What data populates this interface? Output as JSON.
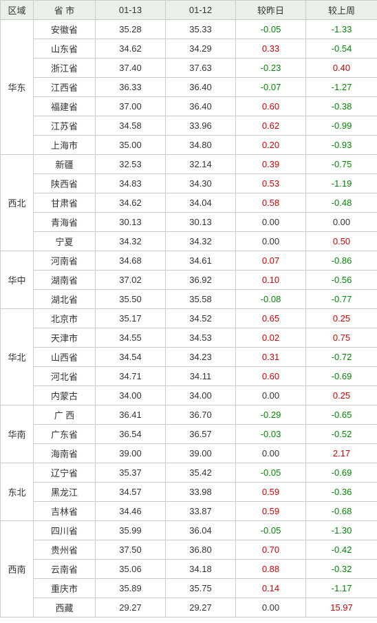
{
  "columns": {
    "region": "区域",
    "province": "省 市",
    "date1": "01-13",
    "date2": "01-12",
    "deltaDay": "较昨日",
    "deltaWeek": "较上周"
  },
  "regions": [
    {
      "name": "华东",
      "rows": [
        {
          "province": "安徽省",
          "v1": "35.28",
          "v2": "35.33",
          "d1": "-0.05",
          "d2": "-1.33"
        },
        {
          "province": "山东省",
          "v1": "34.62",
          "v2": "34.29",
          "d1": "0.33",
          "d2": "-0.54"
        },
        {
          "province": "浙江省",
          "v1": "37.40",
          "v2": "37.63",
          "d1": "-0.23",
          "d2": "0.40"
        },
        {
          "province": "江西省",
          "v1": "36.33",
          "v2": "36.40",
          "d1": "-0.07",
          "d2": "-1.27"
        },
        {
          "province": "福建省",
          "v1": "37.00",
          "v2": "36.40",
          "d1": "0.60",
          "d2": "-0.38"
        },
        {
          "province": "江苏省",
          "v1": "34.58",
          "v2": "33.96",
          "d1": "0.62",
          "d2": "-0.99"
        },
        {
          "province": "上海市",
          "v1": "35.00",
          "v2": "34.80",
          "d1": "0.20",
          "d2": "-0.93"
        }
      ]
    },
    {
      "name": "西北",
      "rows": [
        {
          "province": "新疆",
          "v1": "32.53",
          "v2": "32.14",
          "d1": "0.39",
          "d2": "-0.75"
        },
        {
          "province": "陕西省",
          "v1": "34.83",
          "v2": "34.30",
          "d1": "0.53",
          "d2": "-1.19"
        },
        {
          "province": "甘肃省",
          "v1": "34.62",
          "v2": "34.04",
          "d1": "0.58",
          "d2": "-0.48"
        },
        {
          "province": "青海省",
          "v1": "30.13",
          "v2": "30.13",
          "d1": "0.00",
          "d2": "0.00"
        },
        {
          "province": "宁夏",
          "v1": "34.32",
          "v2": "34.32",
          "d1": "0.00",
          "d2": "0.50"
        }
      ]
    },
    {
      "name": "华中",
      "rows": [
        {
          "province": "河南省",
          "v1": "34.68",
          "v2": "34.61",
          "d1": "0.07",
          "d2": "-0.86"
        },
        {
          "province": "湖南省",
          "v1": "37.02",
          "v2": "36.92",
          "d1": "0.10",
          "d2": "-0.56"
        },
        {
          "province": "湖北省",
          "v1": "35.50",
          "v2": "35.58",
          "d1": "-0.08",
          "d2": "-0.77"
        }
      ]
    },
    {
      "name": "华北",
      "rows": [
        {
          "province": "北京市",
          "v1": "35.17",
          "v2": "34.52",
          "d1": "0.65",
          "d2": "0.25"
        },
        {
          "province": "天津市",
          "v1": "34.55",
          "v2": "34.53",
          "d1": "0.02",
          "d2": "0.75"
        },
        {
          "province": "山西省",
          "v1": "34.54",
          "v2": "34.23",
          "d1": "0.31",
          "d2": "-0.72"
        },
        {
          "province": "河北省",
          "v1": "34.71",
          "v2": "34.11",
          "d1": "0.60",
          "d2": "-0.69"
        },
        {
          "province": "内蒙古",
          "v1": "34.00",
          "v2": "34.00",
          "d1": "0.00",
          "d2": "0.25"
        }
      ]
    },
    {
      "name": "华南",
      "rows": [
        {
          "province": "广 西",
          "v1": "36.41",
          "v2": "36.70",
          "d1": "-0.29",
          "d2": "-0.65"
        },
        {
          "province": "广东省",
          "v1": "36.54",
          "v2": "36.57",
          "d1": "-0.03",
          "d2": "-0.52"
        },
        {
          "province": "海南省",
          "v1": "39.00",
          "v2": "39.00",
          "d1": "0.00",
          "d2": "2.17"
        }
      ]
    },
    {
      "name": "东北",
      "rows": [
        {
          "province": "辽宁省",
          "v1": "35.37",
          "v2": "35.42",
          "d1": "-0.05",
          "d2": "-0.69"
        },
        {
          "province": "黑龙江",
          "v1": "34.57",
          "v2": "33.98",
          "d1": "0.59",
          "d2": "-0.36"
        },
        {
          "province": "吉林省",
          "v1": "34.46",
          "v2": "33.87",
          "d1": "0.59",
          "d2": "-0.68"
        }
      ]
    },
    {
      "name": "西南",
      "rows": [
        {
          "province": "四川省",
          "v1": "35.99",
          "v2": "36.04",
          "d1": "-0.05",
          "d2": "-1.30"
        },
        {
          "province": "贵州省",
          "v1": "37.50",
          "v2": "36.80",
          "d1": "0.70",
          "d2": "-0.42"
        },
        {
          "province": "云南省",
          "v1": "35.06",
          "v2": "34.18",
          "d1": "0.88",
          "d2": "-0.32"
        },
        {
          "province": "重庆市",
          "v1": "35.89",
          "v2": "35.75",
          "d1": "0.14",
          "d2": "-1.17"
        },
        {
          "province": "西藏",
          "v1": "29.27",
          "v2": "29.27",
          "d1": "0.00",
          "d2": "15.97"
        }
      ]
    }
  ],
  "style": {
    "posColor": "#d00000",
    "negColor": "#008800",
    "zeroColor": "#333333",
    "headerBg": "#e8f0e8",
    "borderColor": "#cccccc",
    "fontSize": 13
  }
}
